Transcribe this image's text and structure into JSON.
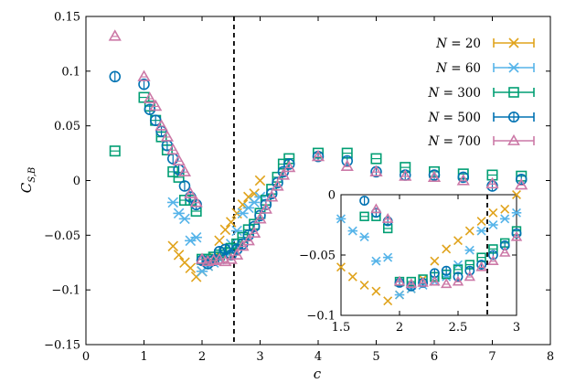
{
  "chart_data": {
    "type": "scatter",
    "xlabel": "c",
    "ylabel": "C_{S,B}",
    "ylabel_main": "C",
    "ylabel_sub": "S,B",
    "xlim": [
      0,
      8
    ],
    "ylim": [
      -0.15,
      0.15
    ],
    "xticks": [
      "0",
      "1",
      "2",
      "3",
      "4",
      "5",
      "6",
      "7",
      "8"
    ],
    "yticks": [
      "−0.15",
      "−0.1",
      "−0.05",
      "0",
      "0.05",
      "0.1",
      "0.15"
    ],
    "xtick_values": [
      0,
      1,
      2,
      3,
      4,
      5,
      6,
      7,
      8
    ],
    "ytick_values": [
      -0.15,
      -0.1,
      -0.05,
      0,
      0.05,
      0.1,
      0.15
    ],
    "vline_x": 2.55,
    "legend_position": "top-right",
    "series": [
      {
        "name": "N = 20",
        "label_main": "N",
        "label_rest": " = 20",
        "color": "#e0a31c",
        "marker": "x",
        "points": [
          [
            1.5,
            -0.06
          ],
          [
            1.6,
            -0.068
          ],
          [
            1.7,
            -0.075
          ],
          [
            1.8,
            -0.08
          ],
          [
            1.9,
            -0.088
          ],
          [
            2.0,
            -0.083
          ],
          [
            2.1,
            -0.078
          ],
          [
            2.2,
            -0.07
          ],
          [
            2.3,
            -0.055
          ],
          [
            2.4,
            -0.045
          ],
          [
            2.5,
            -0.038
          ],
          [
            2.6,
            -0.03
          ],
          [
            2.7,
            -0.022
          ],
          [
            2.8,
            -0.015
          ],
          [
            2.9,
            -0.012
          ],
          [
            3.0,
            0.0
          ]
        ]
      },
      {
        "name": "N = 60",
        "label_main": "N",
        "label_rest": " = 60",
        "color": "#56b4e9",
        "marker": "asterisk",
        "points": [
          [
            1.5,
            -0.02
          ],
          [
            1.6,
            -0.03
          ],
          [
            1.7,
            -0.035
          ],
          [
            1.8,
            -0.055
          ],
          [
            1.9,
            -0.052
          ],
          [
            2.0,
            -0.083
          ],
          [
            2.1,
            -0.078
          ],
          [
            2.2,
            -0.075
          ],
          [
            2.3,
            -0.072
          ],
          [
            2.4,
            -0.068
          ],
          [
            2.5,
            -0.058
          ],
          [
            2.6,
            -0.046
          ],
          [
            2.7,
            -0.03
          ],
          [
            2.8,
            -0.025
          ],
          [
            2.9,
            -0.02
          ],
          [
            3.0,
            -0.015
          ]
        ]
      },
      {
        "name": "N = 300",
        "label_main": "N",
        "label_rest": " = 300",
        "color": "#009e73",
        "marker": "square",
        "points": [
          [
            0.5,
            0.027
          ],
          [
            1.0,
            0.076
          ],
          [
            1.1,
            0.068
          ],
          [
            1.2,
            0.055
          ],
          [
            1.3,
            0.04
          ],
          [
            1.4,
            0.028
          ],
          [
            1.5,
            0.008
          ],
          [
            1.6,
            0.003
          ],
          [
            1.7,
            -0.018
          ],
          [
            1.8,
            -0.018
          ],
          [
            1.9,
            -0.028
          ],
          [
            2.0,
            -0.072
          ],
          [
            2.1,
            -0.072
          ],
          [
            2.2,
            -0.07
          ],
          [
            2.3,
            -0.068
          ],
          [
            2.4,
            -0.066
          ],
          [
            2.5,
            -0.062
          ],
          [
            2.6,
            -0.058
          ],
          [
            2.7,
            -0.052
          ],
          [
            2.8,
            -0.045
          ],
          [
            2.9,
            -0.04
          ],
          [
            3.0,
            -0.03
          ],
          [
            3.1,
            -0.018
          ],
          [
            3.2,
            -0.008
          ],
          [
            3.3,
            0.003
          ],
          [
            3.4,
            0.015
          ],
          [
            3.5,
            0.02
          ],
          [
            4.0,
            0.025
          ],
          [
            4.5,
            0.025
          ],
          [
            5.0,
            0.02
          ],
          [
            5.5,
            0.012
          ],
          [
            6.0,
            0.008
          ],
          [
            6.5,
            0.006
          ],
          [
            7.0,
            0.005
          ],
          [
            7.5,
            0.004
          ]
        ]
      },
      {
        "name": "N = 500",
        "label_main": "N",
        "label_rest": " = 500",
        "color": "#0072b2",
        "marker": "circle",
        "points": [
          [
            0.5,
            0.095
          ],
          [
            1.0,
            0.088
          ],
          [
            1.1,
            0.065
          ],
          [
            1.2,
            0.055
          ],
          [
            1.3,
            0.045
          ],
          [
            1.4,
            0.032
          ],
          [
            1.5,
            0.02
          ],
          [
            1.6,
            0.01
          ],
          [
            1.7,
            -0.005
          ],
          [
            1.8,
            -0.015
          ],
          [
            1.9,
            -0.022
          ],
          [
            2.0,
            -0.073
          ],
          [
            2.1,
            -0.076
          ],
          [
            2.2,
            -0.073
          ],
          [
            2.3,
            -0.065
          ],
          [
            2.4,
            -0.063
          ],
          [
            2.5,
            -0.068
          ],
          [
            2.6,
            -0.063
          ],
          [
            2.7,
            -0.058
          ],
          [
            2.8,
            -0.05
          ],
          [
            2.9,
            -0.042
          ],
          [
            3.0,
            -0.032
          ],
          [
            3.1,
            -0.022
          ],
          [
            3.2,
            -0.012
          ],
          [
            3.3,
            -0.002
          ],
          [
            3.4,
            0.008
          ],
          [
            3.5,
            0.015
          ],
          [
            4.0,
            0.022
          ],
          [
            4.5,
            0.018
          ],
          [
            5.0,
            0.008
          ],
          [
            5.5,
            0.005
          ],
          [
            6.0,
            0.005
          ],
          [
            6.5,
            0.003
          ],
          [
            7.0,
            -0.005
          ],
          [
            7.5,
            0.001
          ]
        ]
      },
      {
        "name": "N = 700",
        "label_main": "N",
        "label_rest": " = 700",
        "color": "#cc79a7",
        "marker": "triangle",
        "points": [
          [
            0.5,
            0.132
          ],
          [
            1.0,
            0.095
          ],
          [
            1.1,
            0.075
          ],
          [
            1.2,
            0.068
          ],
          [
            1.3,
            0.05
          ],
          [
            1.4,
            0.04
          ],
          [
            1.5,
            0.028
          ],
          [
            1.6,
            0.018
          ],
          [
            1.7,
            0.008
          ],
          [
            1.8,
            -0.012
          ],
          [
            1.9,
            -0.02
          ],
          [
            2.0,
            -0.072
          ],
          [
            2.1,
            -0.074
          ],
          [
            2.2,
            -0.073
          ],
          [
            2.3,
            -0.072
          ],
          [
            2.4,
            -0.074
          ],
          [
            2.5,
            -0.072
          ],
          [
            2.6,
            -0.068
          ],
          [
            2.7,
            -0.06
          ],
          [
            2.8,
            -0.055
          ],
          [
            2.9,
            -0.048
          ],
          [
            3.0,
            -0.035
          ],
          [
            3.1,
            -0.026
          ],
          [
            3.2,
            -0.015
          ],
          [
            3.3,
            -0.005
          ],
          [
            3.4,
            0.005
          ],
          [
            3.5,
            0.012
          ],
          [
            4.0,
            0.022
          ],
          [
            4.5,
            0.013
          ],
          [
            5.0,
            0.008
          ],
          [
            5.5,
            0.004
          ],
          [
            6.0,
            0.003
          ],
          [
            6.5,
            0.0
          ],
          [
            7.0,
            -0.003
          ],
          [
            7.5,
            -0.004
          ]
        ]
      }
    ],
    "inset": {
      "xlim": [
        1.5,
        3
      ],
      "ylim": [
        -0.1,
        0
      ],
      "xticks": [
        "1.5",
        "2",
        "2.5",
        "3"
      ],
      "yticks": [
        "−0.1",
        "−0.05",
        "0"
      ],
      "xtick_values": [
        1.5,
        2,
        2.5,
        3
      ],
      "ytick_values": [
        -0.1,
        -0.05,
        0
      ],
      "vline_x": 2.75
    }
  }
}
